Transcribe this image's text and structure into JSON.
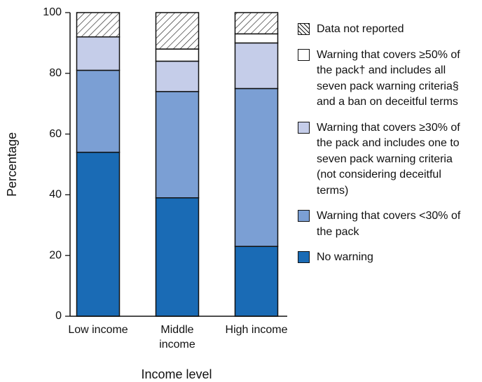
{
  "chart_data": {
    "type": "stacked-bar",
    "x_label": "Income level",
    "y_label": "Percentage",
    "categories": [
      "Low income",
      "Middle income",
      "High income"
    ],
    "series": [
      {
        "name": "No warning",
        "color": "#1a6bb5",
        "values": [
          54,
          39,
          23
        ]
      },
      {
        "name": "Warning that covers <30% of the pack",
        "color": "#7b9fd4",
        "values": [
          27,
          35,
          52
        ]
      },
      {
        "name": "Warning that covers ≥30% of the pack and includes one to seven pack warning criteria (not considering deceitful terms)",
        "color": "#c5cde9",
        "values": [
          11,
          10,
          15
        ]
      },
      {
        "name": "Warning that covers ≥50% of the pack† and includes all seven pack warning criteria§ and a ban on deceitful terms",
        "color": "#ffffff",
        "values": [
          0,
          4,
          3
        ]
      },
      {
        "name": "Data not reported",
        "color": "#ffffff",
        "pattern": "diagonal-hatch",
        "values": [
          8,
          12,
          7
        ]
      }
    ],
    "ylim": [
      0,
      100
    ],
    "yticks": [
      0,
      20,
      40,
      60,
      80,
      100
    ],
    "grid": false,
    "legend": "right"
  }
}
